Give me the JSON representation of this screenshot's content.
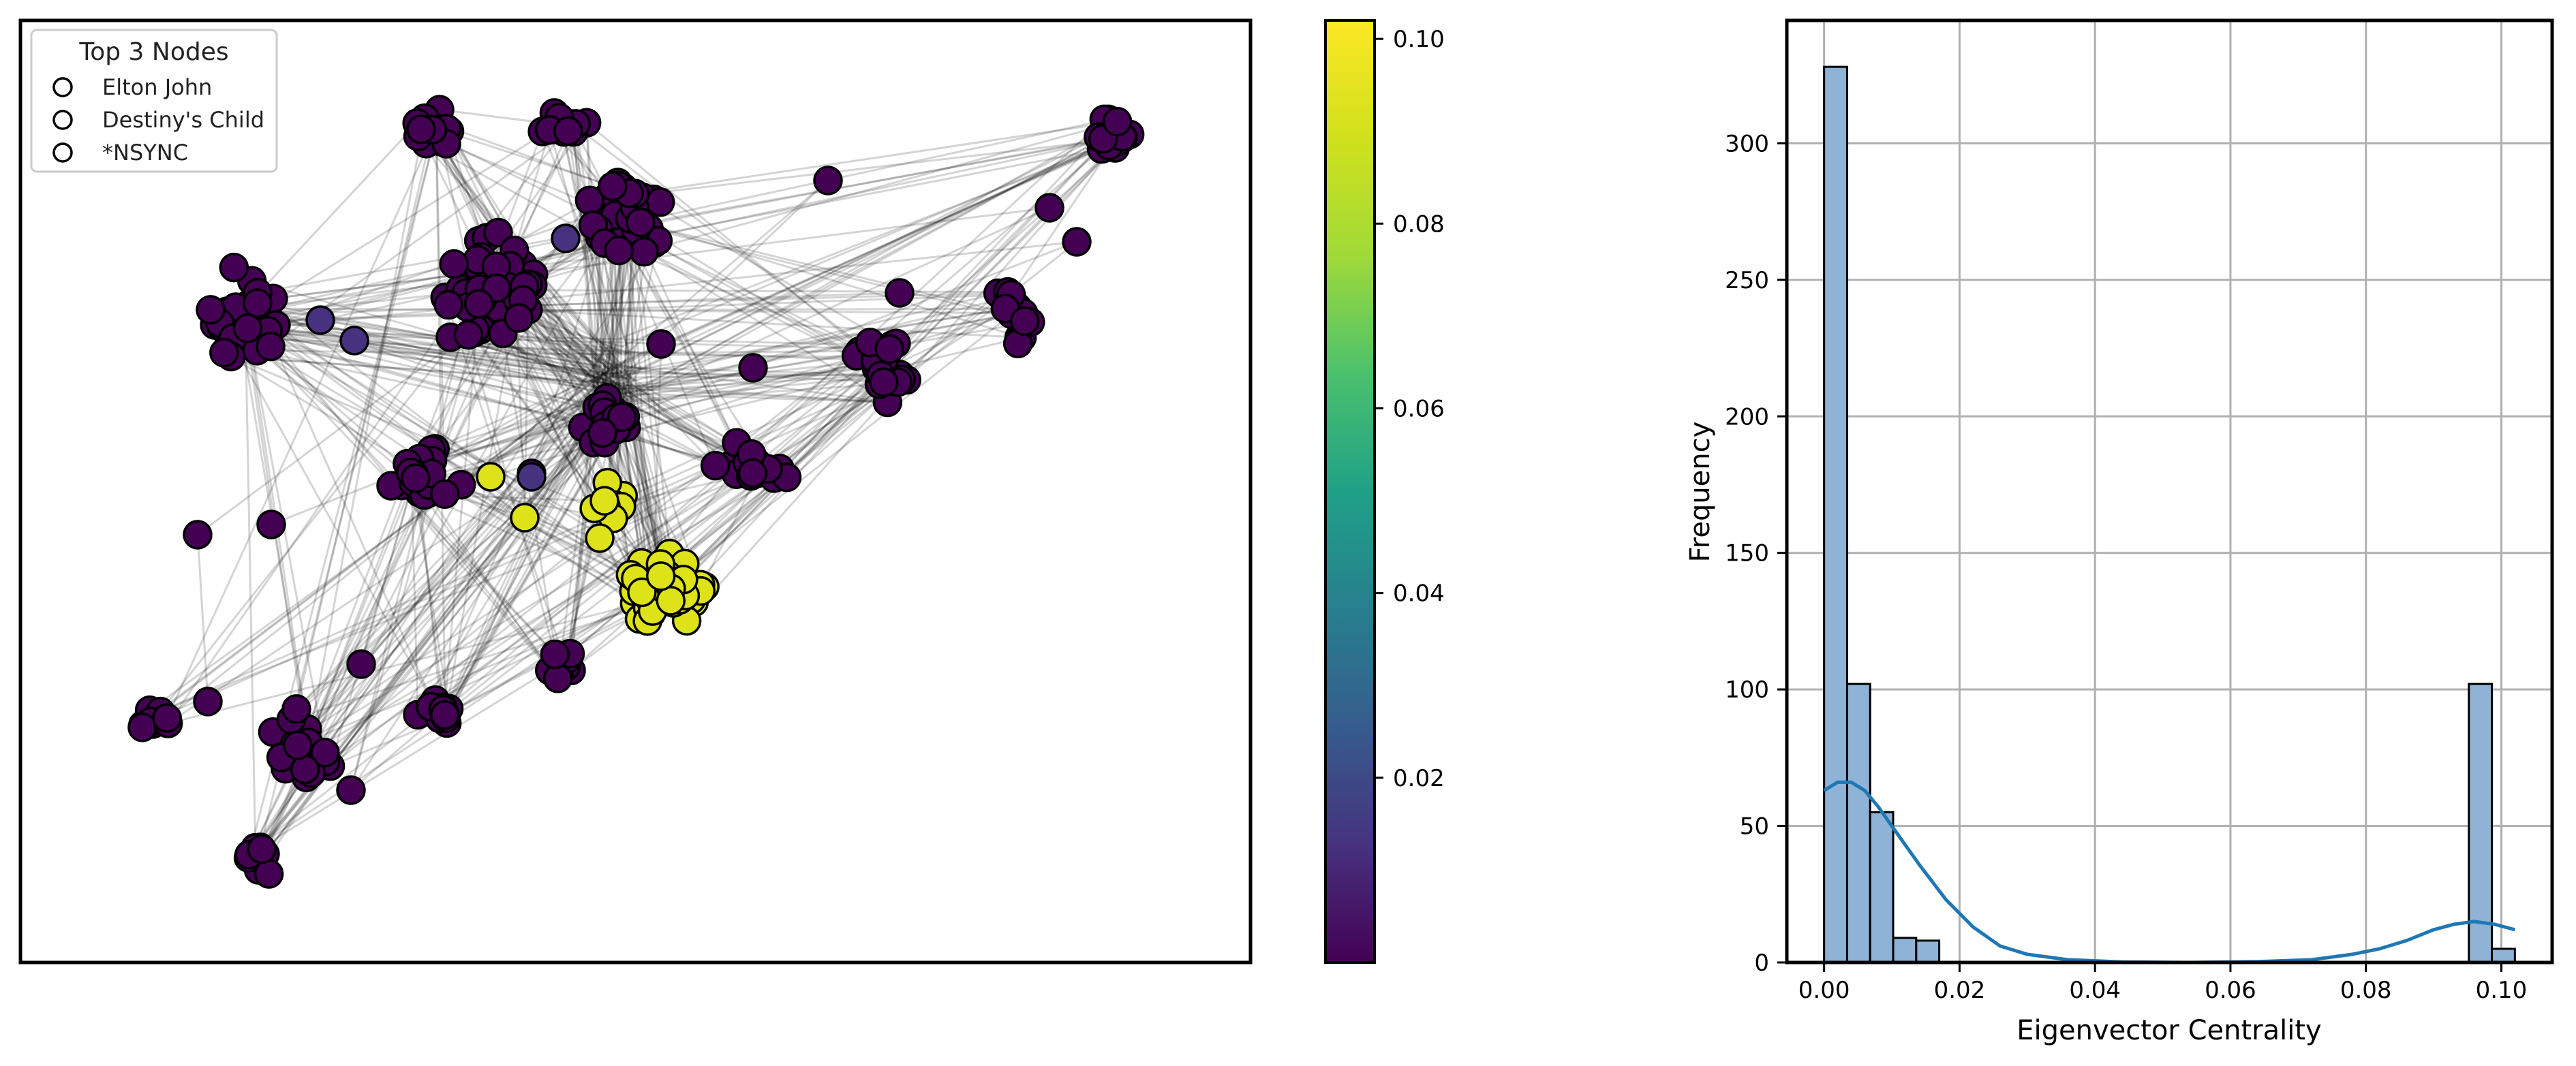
{
  "chart_data": [
    {
      "type": "network",
      "legend": {
        "title": "Top 3 Nodes",
        "entries": [
          "Elton John",
          "Destiny's Child",
          "*NSYNC"
        ],
        "placement": "upper-left"
      },
      "colormap": "viridis",
      "node_value_range": [
        0,
        0.102
      ],
      "colorbar": {
        "ticks": [
          0.02,
          0.04,
          0.06,
          0.08,
          0.1
        ],
        "tick_labels": [
          "0.02",
          "0.04",
          "0.06",
          "0.08",
          "0.10"
        ]
      }
    },
    {
      "type": "bar",
      "subtype": "histogram with kde",
      "xlabel": "Eigenvector Centrality",
      "ylabel": "Frequency",
      "xlim": [
        -0.0055,
        0.1075
      ],
      "ylim": [
        0,
        345
      ],
      "grid": true,
      "bins": [
        {
          "x0": 0.0,
          "x1": 0.0034,
          "count": 328
        },
        {
          "x0": 0.0034,
          "x1": 0.0068,
          "count": 102
        },
        {
          "x0": 0.0068,
          "x1": 0.0102,
          "count": 55
        },
        {
          "x0": 0.0102,
          "x1": 0.0136,
          "count": 9
        },
        {
          "x0": 0.0136,
          "x1": 0.017,
          "count": 8
        },
        {
          "x0": 0.0952,
          "x1": 0.0986,
          "count": 102
        },
        {
          "x0": 0.0986,
          "x1": 0.102,
          "count": 5
        }
      ],
      "kde": {
        "x": [
          0.0,
          0.002,
          0.004,
          0.006,
          0.008,
          0.01,
          0.014,
          0.018,
          0.022,
          0.026,
          0.03,
          0.036,
          0.044,
          0.054,
          0.064,
          0.072,
          0.078,
          0.082,
          0.086,
          0.09,
          0.093,
          0.096,
          0.099,
          0.102
        ],
        "y": [
          63,
          66,
          66,
          63,
          57,
          50,
          36,
          23,
          13,
          6,
          3,
          1,
          0.2,
          0,
          0.3,
          1,
          3,
          5,
          8,
          12,
          14,
          15,
          14,
          12
        ]
      },
      "x_ticks": [
        0.0,
        0.02,
        0.04,
        0.06,
        0.08,
        0.1
      ],
      "x_tick_labels": [
        "0.00",
        "0.02",
        "0.04",
        "0.06",
        "0.08",
        "0.10"
      ],
      "y_ticks": [
        0,
        50,
        100,
        150,
        200,
        250,
        300
      ],
      "y_tick_labels": [
        "0",
        "50",
        "100",
        "150",
        "200",
        "250",
        "300"
      ],
      "bar_color": "#8eb3d6",
      "kde_color": "#1f77b4"
    }
  ]
}
